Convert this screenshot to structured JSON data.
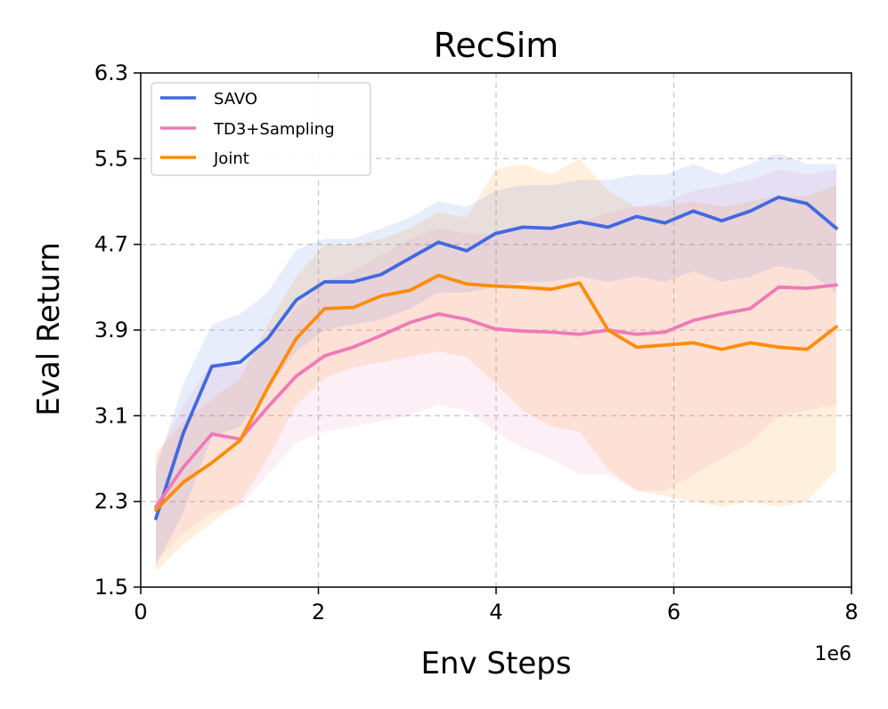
{
  "chart_data": {
    "type": "line",
    "title": "RecSim",
    "xlabel": "Env Steps",
    "ylabel": "Eval Return",
    "x_offset_label": "1e6",
    "xlim": [
      0,
      8
    ],
    "ylim": [
      1.5,
      6.3
    ],
    "xticks": [
      0,
      2,
      4,
      6,
      8
    ],
    "xtick_labels": [
      "0",
      "2",
      "4",
      "6",
      "8"
    ],
    "yticks": [
      1.5,
      2.3,
      3.1,
      3.9,
      4.7,
      5.5,
      6.3
    ],
    "ytick_labels": [
      "1.5",
      "2.3",
      "3.1",
      "3.9",
      "4.7",
      "5.5",
      "6.3"
    ],
    "grid": true,
    "legend_position": "top-left",
    "x": [
      0.17,
      0.48,
      0.8,
      1.12,
      1.43,
      1.75,
      2.07,
      2.39,
      2.71,
      3.03,
      3.35,
      3.67,
      3.99,
      4.3,
      4.62,
      4.94,
      5.26,
      5.58,
      5.9,
      6.22,
      6.54,
      6.86,
      7.18,
      7.5,
      7.83
    ],
    "series": [
      {
        "name": "SAVO",
        "color": "#4169e1",
        "values": [
          2.14,
          2.94,
          3.56,
          3.6,
          3.82,
          4.18,
          4.35,
          4.35,
          4.42,
          4.57,
          4.72,
          4.64,
          4.8,
          4.86,
          4.85,
          4.91,
          4.86,
          4.96,
          4.9,
          5.01,
          4.92,
          5.01,
          5.14,
          5.08,
          4.85
        ],
        "lower": [
          1.7,
          2.2,
          2.9,
          3.0,
          3.35,
          3.7,
          3.9,
          3.95,
          4.0,
          4.1,
          4.25,
          4.25,
          4.3,
          4.35,
          4.35,
          4.4,
          4.35,
          4.4,
          4.35,
          4.45,
          4.35,
          4.4,
          4.5,
          4.45,
          4.25
        ],
        "upper": [
          2.6,
          3.4,
          3.95,
          4.05,
          4.25,
          4.65,
          4.75,
          4.75,
          4.85,
          4.95,
          5.1,
          5.05,
          5.2,
          5.25,
          5.25,
          5.3,
          5.3,
          5.35,
          5.35,
          5.45,
          5.35,
          5.45,
          5.55,
          5.45,
          5.45
        ]
      },
      {
        "name": "TD3+Sampling",
        "color": "#ef7ab8",
        "values": [
          2.25,
          2.62,
          2.93,
          2.88,
          3.18,
          3.47,
          3.66,
          3.74,
          3.85,
          3.97,
          4.05,
          4.0,
          3.91,
          3.89,
          3.88,
          3.86,
          3.9,
          3.86,
          3.88,
          3.99,
          4.05,
          4.1,
          4.3,
          4.29,
          4.32
        ],
        "lower": [
          1.75,
          2.0,
          2.2,
          2.25,
          2.55,
          2.85,
          2.95,
          3.0,
          3.05,
          3.1,
          3.2,
          3.15,
          2.95,
          2.8,
          2.7,
          2.55,
          2.55,
          2.4,
          2.4,
          2.55,
          2.7,
          2.85,
          3.1,
          3.15,
          3.2
        ],
        "upper": [
          2.7,
          3.2,
          3.6,
          3.55,
          3.8,
          4.1,
          4.35,
          4.45,
          4.6,
          4.75,
          4.85,
          4.8,
          4.8,
          4.85,
          4.85,
          4.9,
          5.0,
          5.05,
          5.1,
          5.2,
          5.25,
          5.3,
          5.4,
          5.35,
          5.4
        ]
      },
      {
        "name": "Joint",
        "color": "#ff8c0a",
        "values": [
          2.22,
          2.48,
          2.66,
          2.87,
          3.36,
          3.82,
          4.1,
          4.11,
          4.22,
          4.27,
          4.41,
          4.33,
          4.31,
          4.3,
          4.28,
          4.34,
          3.9,
          3.74,
          3.76,
          3.78,
          3.72,
          3.78,
          3.74,
          3.72,
          3.93
        ],
        "lower": [
          1.65,
          1.9,
          2.1,
          2.3,
          2.7,
          3.2,
          3.45,
          3.55,
          3.6,
          3.65,
          3.7,
          3.65,
          3.4,
          3.15,
          3.0,
          2.95,
          2.6,
          2.4,
          2.35,
          2.3,
          2.25,
          2.3,
          2.25,
          2.3,
          2.6
        ],
        "upper": [
          2.75,
          3.05,
          3.25,
          3.45,
          3.95,
          4.4,
          4.7,
          4.7,
          4.75,
          4.85,
          5.0,
          4.95,
          5.4,
          5.45,
          5.35,
          5.5,
          5.2,
          5.05,
          5.05,
          5.1,
          5.05,
          5.1,
          5.15,
          5.15,
          5.25
        ]
      }
    ]
  }
}
